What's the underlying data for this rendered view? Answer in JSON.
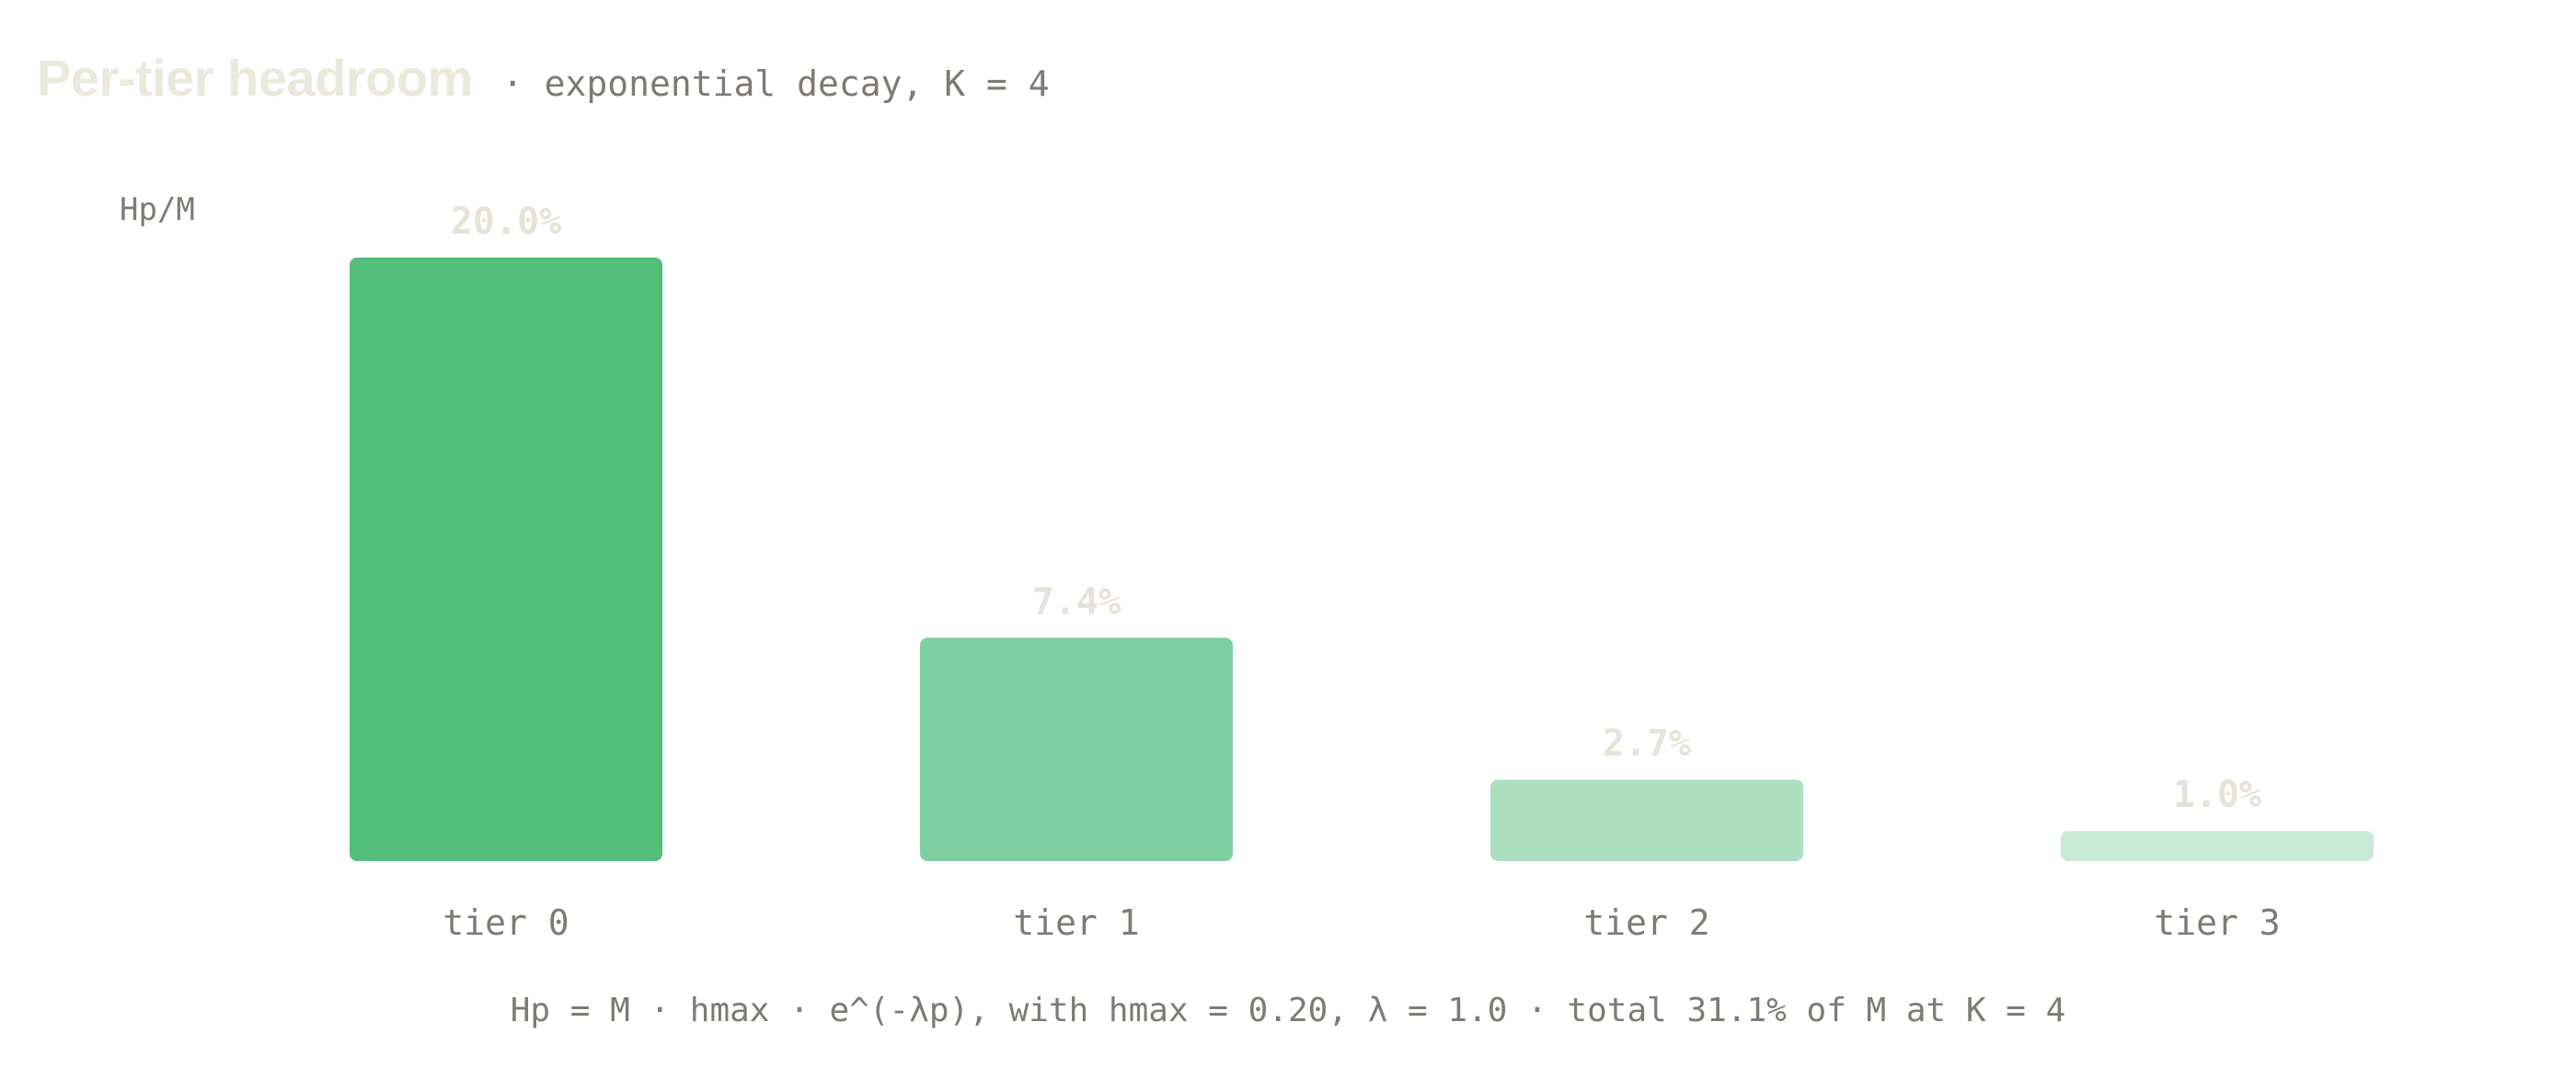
{
  "chart_data": {
    "type": "bar",
    "title": "Per-tier headroom",
    "subtitle": "· exponential decay, K = 4",
    "ylabel": "Hp/M",
    "xlabel": "",
    "categories": [
      "tier 0",
      "tier 1",
      "tier 2",
      "tier 3"
    ],
    "values": [
      20.0,
      7.4,
      2.7,
      1.0
    ],
    "value_labels": [
      "20.0%",
      "7.4%",
      "2.7%",
      "1.0%"
    ],
    "ylim": [
      0,
      20
    ],
    "colors": [
      "#52be7a",
      "#7ecf9f",
      "#abdfbf",
      "#c9ebd6"
    ],
    "grid": false,
    "footnote": "Hp = M · hmax · e^(-λp), with hmax = 0.20, λ = 1.0 · total 31.1% of M at K = 4"
  }
}
